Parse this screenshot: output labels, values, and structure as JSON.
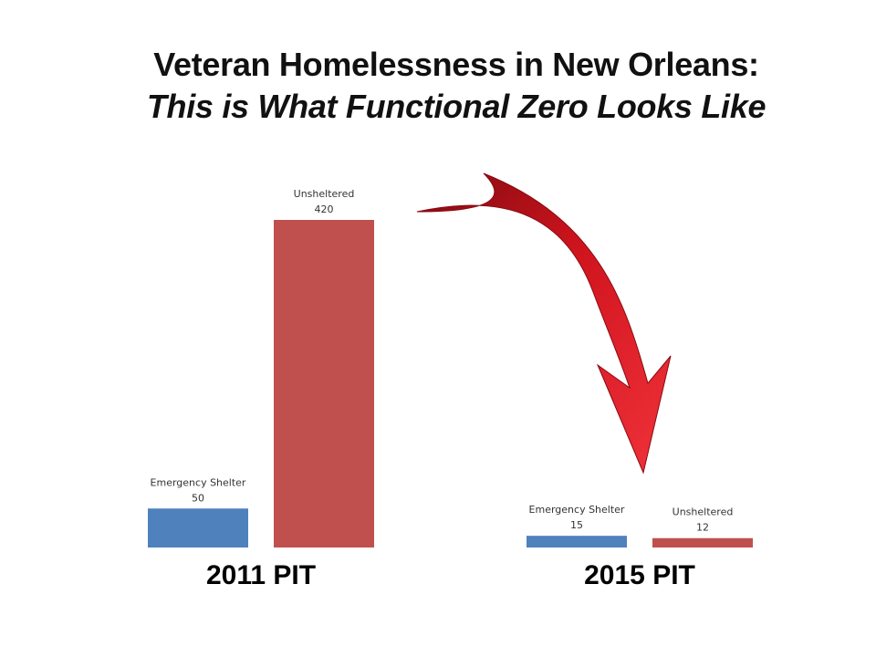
{
  "title": "Veteran Homelessness in New Orleans:",
  "subtitle": "This is What Functional Zero Looks Like",
  "colors": {
    "emergency_shelter": "#4f81bd",
    "unsheltered": "#c0504d",
    "arrow": "#c8101c"
  },
  "chart_data": {
    "type": "bar",
    "categories": [
      "2011 PIT",
      "2015 PIT"
    ],
    "series": [
      {
        "name": "Emergency Shelter",
        "values": [
          50,
          15
        ]
      },
      {
        "name": "Unsheltered",
        "values": [
          420,
          12
        ]
      }
    ],
    "ylim": [
      0,
      420
    ],
    "grid": false,
    "legend": "none",
    "annotations": [
      "arrow from 2011 PIT to 2015 PIT"
    ]
  }
}
